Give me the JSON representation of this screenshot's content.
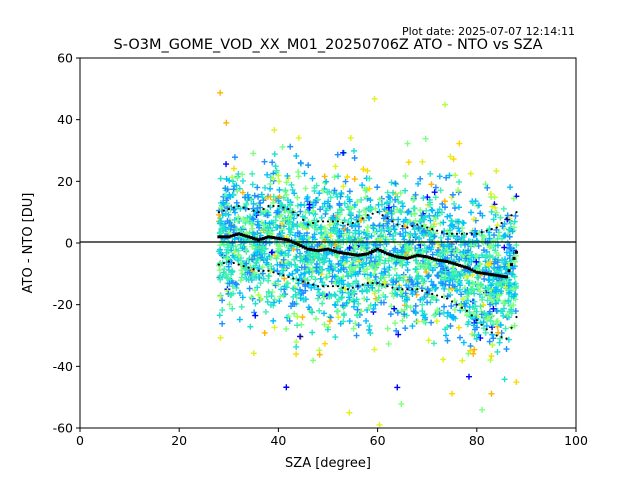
{
  "chart_data": {
    "type": "scatter",
    "title": "S-O3M_GOME_VOD_XX_M01_20250706Z ATO - NTO vs SZA",
    "plot_date": "Plot date: 2025-07-07 12:14:11",
    "xlabel": "SZA [degree]",
    "ylabel": "ATO - NTO [DU]",
    "xlim": [
      0,
      100
    ],
    "ylim": [
      -60,
      60
    ],
    "xticks": [
      0,
      20,
      40,
      60,
      80,
      100
    ],
    "yticks": [
      -60,
      -40,
      -20,
      0,
      20,
      40,
      60
    ],
    "grid": false,
    "legend": "none",
    "marker": "plus",
    "zero_line": 0,
    "point_colors": [
      "#1e90ff",
      "#00bfff",
      "#20e0d0",
      "#40f0b0",
      "#7fff7f",
      "#b0ff40",
      "#e0f020",
      "#ffd700",
      "#ffb300",
      "#0000ff"
    ],
    "sza_range": [
      28,
      88
    ],
    "median": {
      "x": [
        28,
        30,
        32,
        34,
        36,
        38,
        40,
        42,
        44,
        46,
        48,
        50,
        52,
        54,
        56,
        58,
        60,
        62,
        64,
        66,
        68,
        70,
        72,
        74,
        76,
        78,
        80,
        82,
        84,
        86,
        88
      ],
      "y": [
        2,
        2,
        3,
        2,
        1,
        2,
        1.5,
        1,
        -0.5,
        -2,
        -2.5,
        -2,
        -3,
        -3.5,
        -4,
        -3.5,
        -2,
        -3.5,
        -4.5,
        -5,
        -4,
        -4.5,
        -5.5,
        -6,
        -7,
        -8,
        -9.5,
        -10,
        -10.5,
        -11,
        -3
      ]
    },
    "upper_band": {
      "x": [
        28,
        30,
        32,
        34,
        36,
        38,
        40,
        42,
        44,
        46,
        48,
        50,
        52,
        54,
        56,
        58,
        60,
        62,
        64,
        66,
        68,
        70,
        72,
        74,
        76,
        78,
        80,
        82,
        84,
        86,
        88
      ],
      "y": [
        10,
        11,
        12,
        11,
        10,
        12,
        12,
        11,
        9,
        6,
        7,
        7,
        7,
        6,
        7,
        9,
        10,
        8,
        6,
        5,
        6,
        5,
        4,
        3,
        3,
        3,
        3,
        4,
        5,
        8,
        10
      ]
    },
    "lower_band": {
      "x": [
        28,
        30,
        32,
        34,
        36,
        38,
        40,
        42,
        44,
        46,
        48,
        50,
        52,
        54,
        56,
        58,
        60,
        62,
        64,
        66,
        68,
        70,
        72,
        74,
        76,
        78,
        80,
        82,
        84,
        86,
        88
      ],
      "y": [
        -7,
        -6,
        -7,
        -8,
        -9,
        -9,
        -10,
        -11,
        -12,
        -13,
        -14,
        -14,
        -14,
        -15,
        -14,
        -13,
        -13,
        -14,
        -15,
        -15,
        -15,
        -16,
        -17,
        -18,
        -20,
        -22,
        -25,
        -28,
        -30,
        -31,
        -24
      ]
    }
  }
}
